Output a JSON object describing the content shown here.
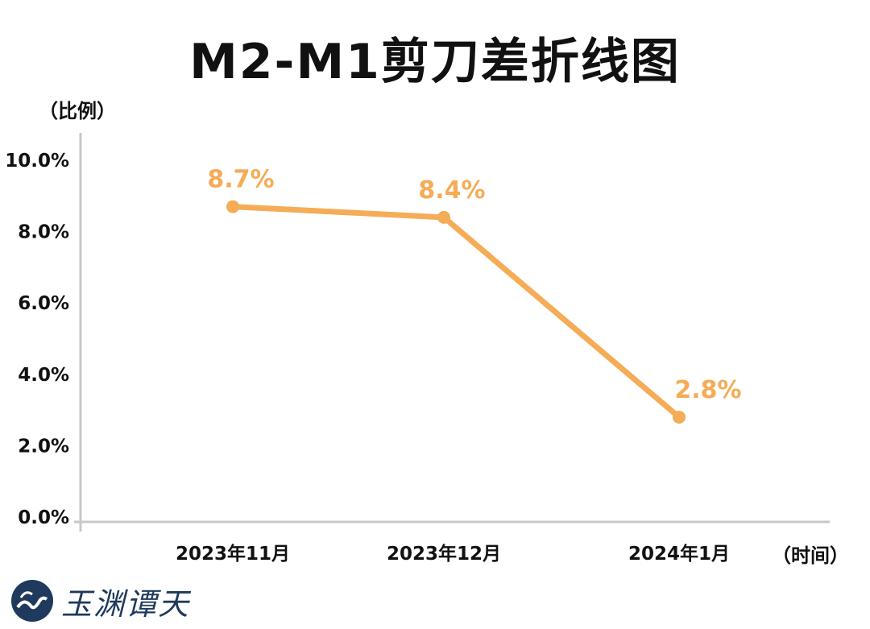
{
  "chart_data": {
    "type": "line",
    "title": "M2-M1剪刀差折线图",
    "ylabel": "（比例）",
    "xlabel": "（时间）",
    "categories": [
      "2023年11月",
      "2023年12月",
      "2024年1月"
    ],
    "series": [
      {
        "values": [
          8.7,
          8.4,
          2.8
        ],
        "color": "#F5AC56"
      }
    ],
    "data_labels": [
      "8.7%",
      "8.4%",
      "2.8%"
    ],
    "yticks": [
      "0.0%",
      "2.0%",
      "4.0%",
      "6.0%",
      "8.0%",
      "10.0%"
    ],
    "ylim": [
      0,
      10
    ],
    "grid": false
  },
  "logo": {
    "text": "玉渊谭天",
    "icon": "wave-circle-icon",
    "color": "#1f3a5c"
  },
  "colors": {
    "axis": "#c8c8c8",
    "line": "#F5AC56",
    "text": "#111111"
  }
}
